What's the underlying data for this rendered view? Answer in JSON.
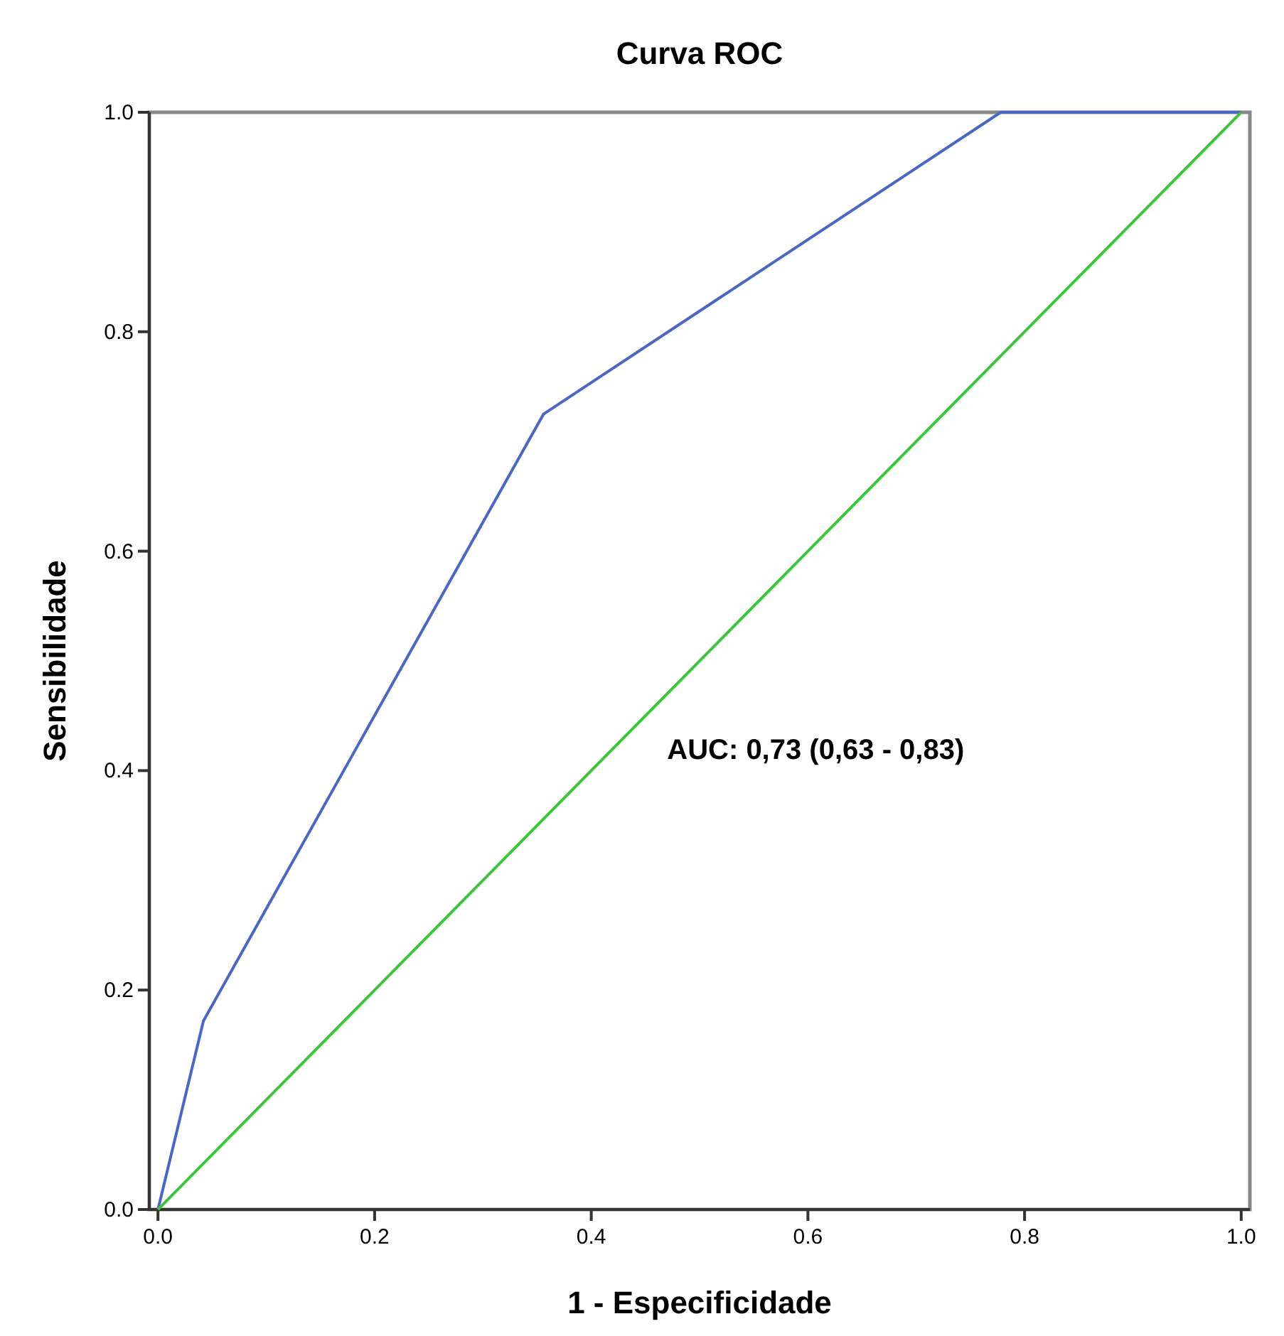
{
  "chart_data": {
    "type": "line",
    "title": "Curva ROC",
    "xlabel": "1 - Especificidade",
    "ylabel": "Sensibilidade",
    "x": [
      0,
      0.042,
      0.356,
      0.778,
      1
    ],
    "series": [
      {
        "color": "#4a67c4",
        "values": [
          0,
          0.172,
          0.725,
          1,
          1
        ]
      },
      {
        "color": "#3cc43c",
        "x": [
          0,
          1
        ],
        "values": [
          0,
          1
        ]
      }
    ],
    "xlim": [
      -0.008,
      1.008
    ],
    "ylim": [
      0,
      1
    ],
    "xticks": [
      {
        "value": 0,
        "label": "0.0"
      },
      0.2,
      0.4,
      0.6,
      0.8,
      {
        "value": 1,
        "label": "1.0"
      }
    ],
    "yticks": [
      {
        "value": 0,
        "label": "0.0"
      },
      0.2,
      0.4,
      0.6,
      0.8,
      {
        "value": 1,
        "label": "1.0"
      }
    ],
    "annotations": [
      "AUC: 0,73 (0,63 - 0,83)"
    ],
    "marker": "none",
    "line_style": "solid"
  }
}
